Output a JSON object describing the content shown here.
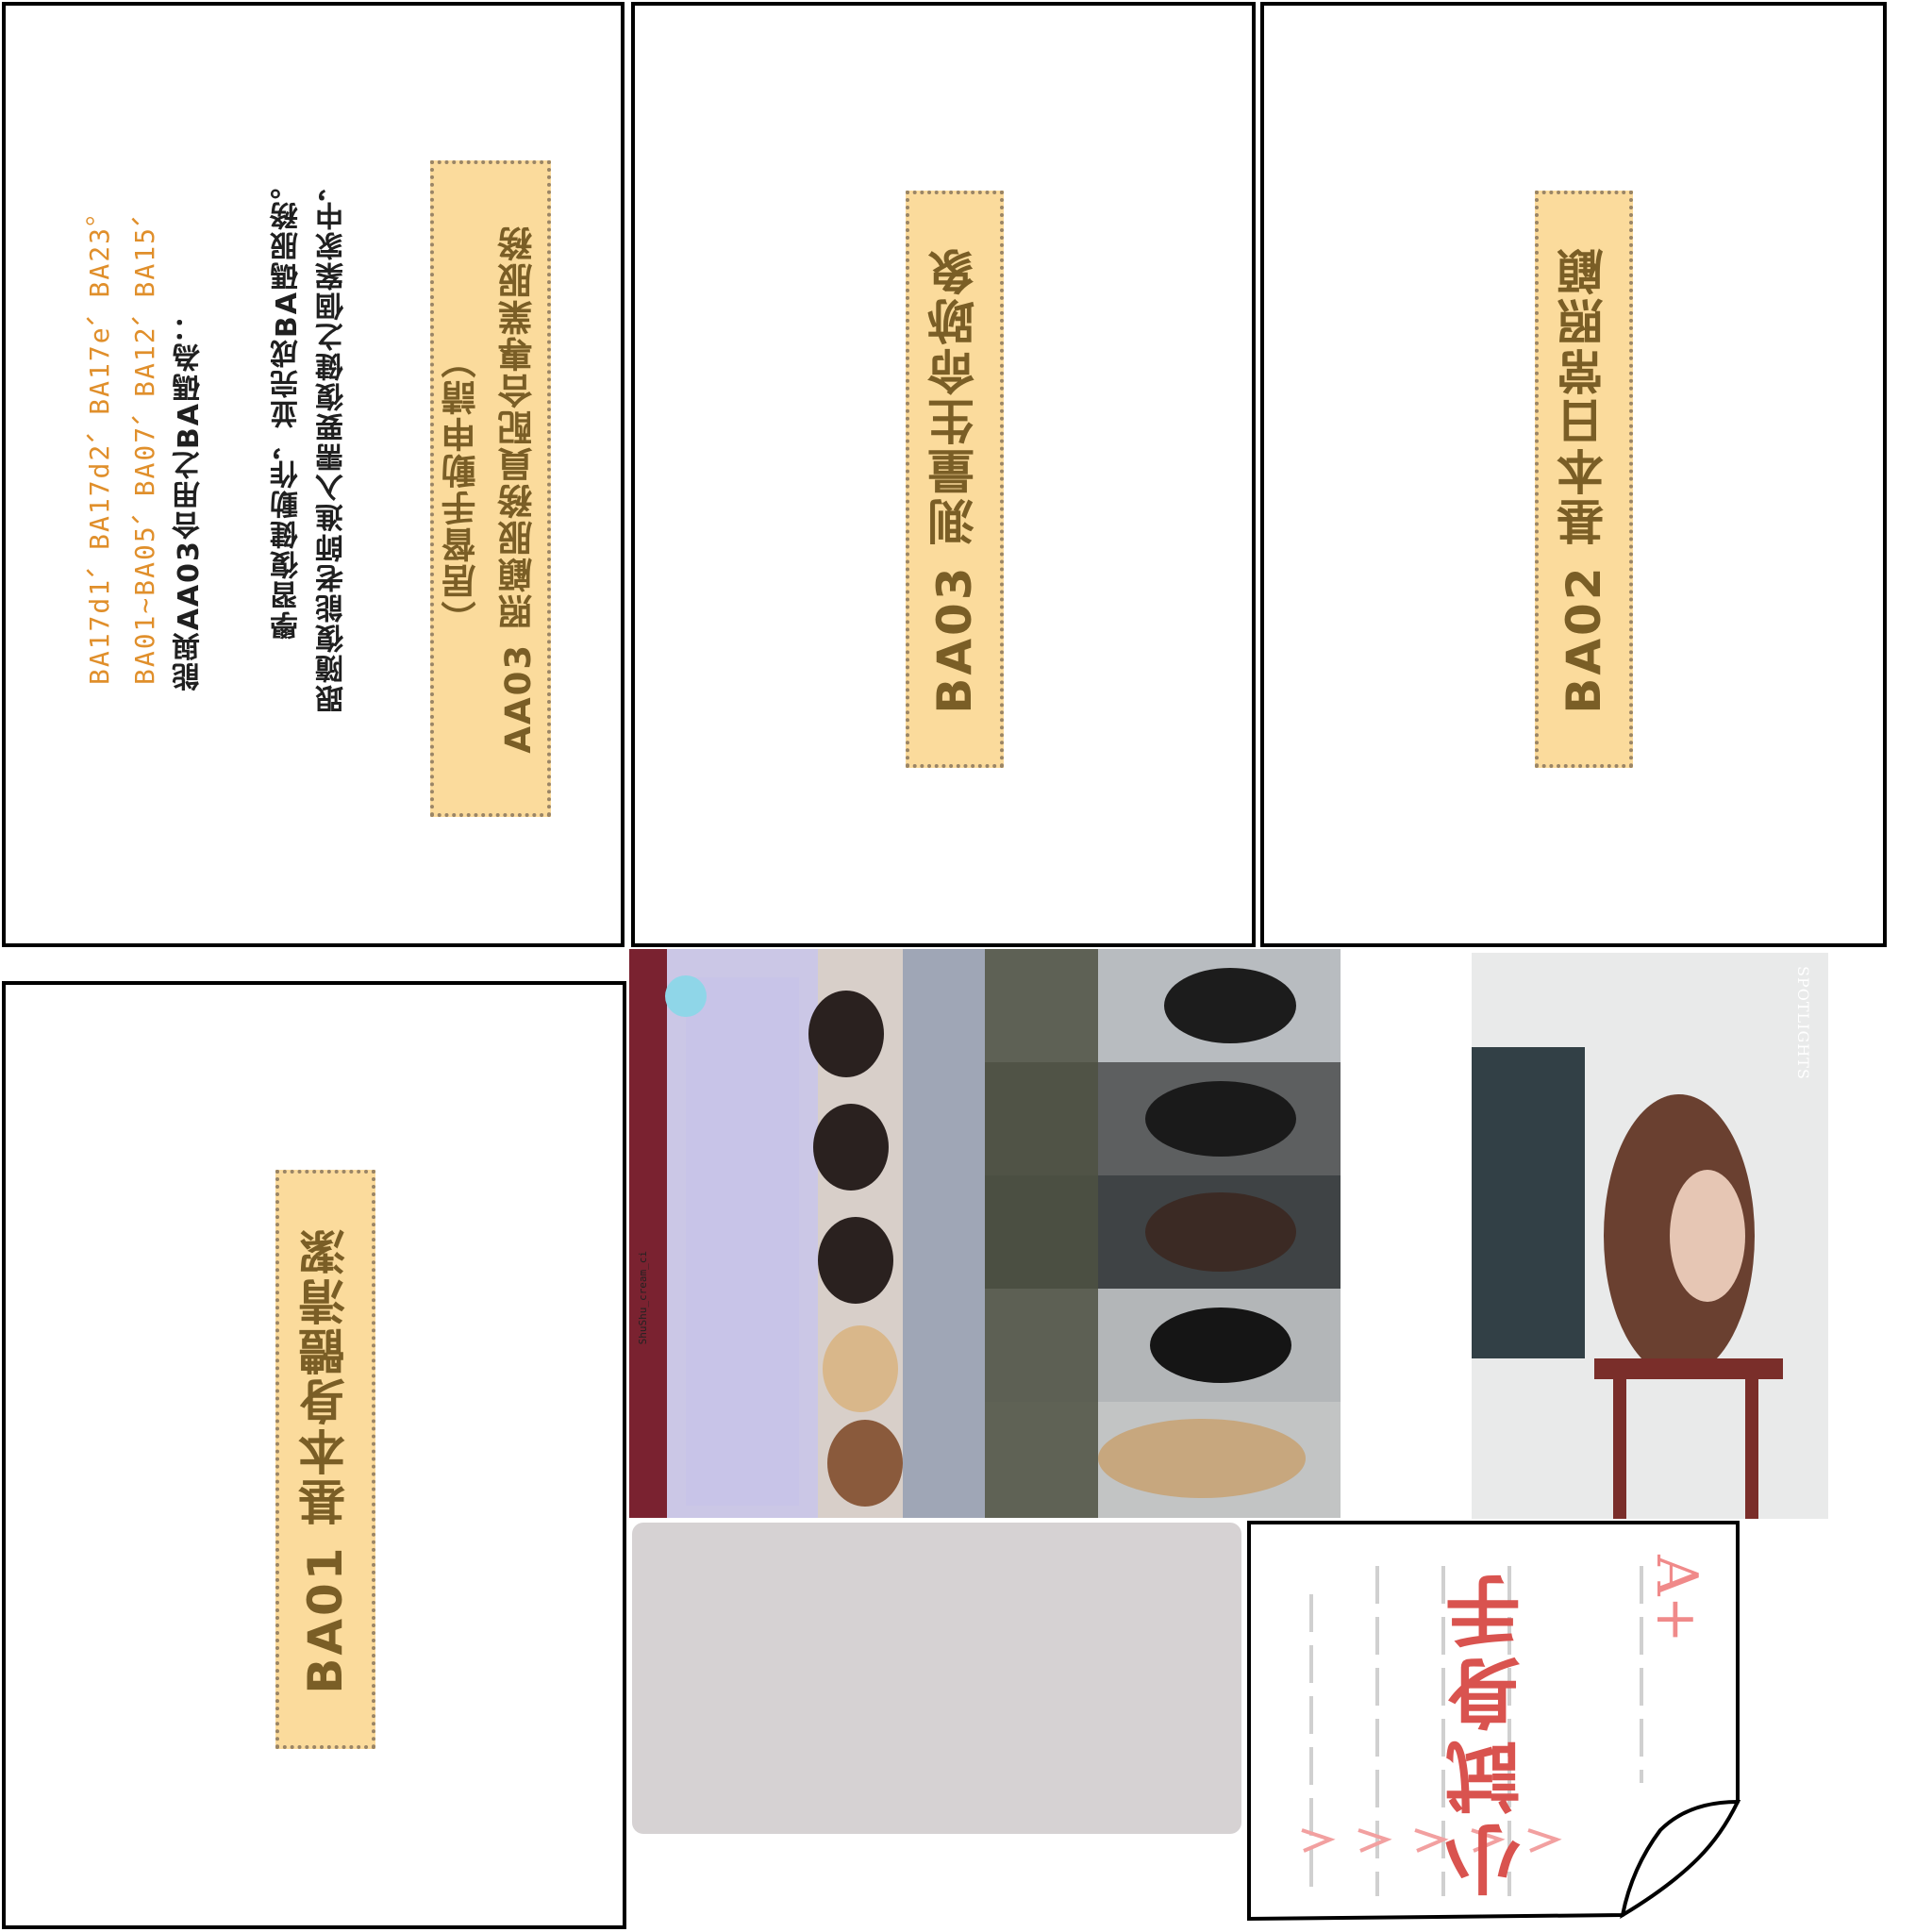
{
  "cards": {
    "ba02": {
      "title": "BA02 基本日常照顧"
    },
    "ba03": {
      "title": "BA03 測量生命跡象"
    },
    "ba01": {
      "title": "BA01 基本身體清潔"
    },
    "aa03": {
      "title_line1": "AA03 照顧服務員配合專業服務",
      "title_line2": "（居督手動申請）",
      "desc_line1": "跟隨復能老師進入需要復健之個案家中，",
      "desc_line2": "學習復健動作，並完成BA碼服務。",
      "combo_line": "能與AA03合用之BA碼為：",
      "codes_line1": "BA01~BA05、BA07、BA12、BA15、",
      "codes_line2": "BA17d1、BA17d2、BA17e、BA23。"
    }
  },
  "photos": {
    "group_watermark": "ShuShu_cream_ci",
    "portrait_watermark": "SPOTLIGHTS"
  },
  "sticker": {
    "grade": "A+",
    "text": "小試身手"
  },
  "colors": {
    "label_fill": "#fbdb9c",
    "label_text": "#7a5e26",
    "codes_text": "#e08f2b",
    "sticker_text": "#d9534f"
  }
}
